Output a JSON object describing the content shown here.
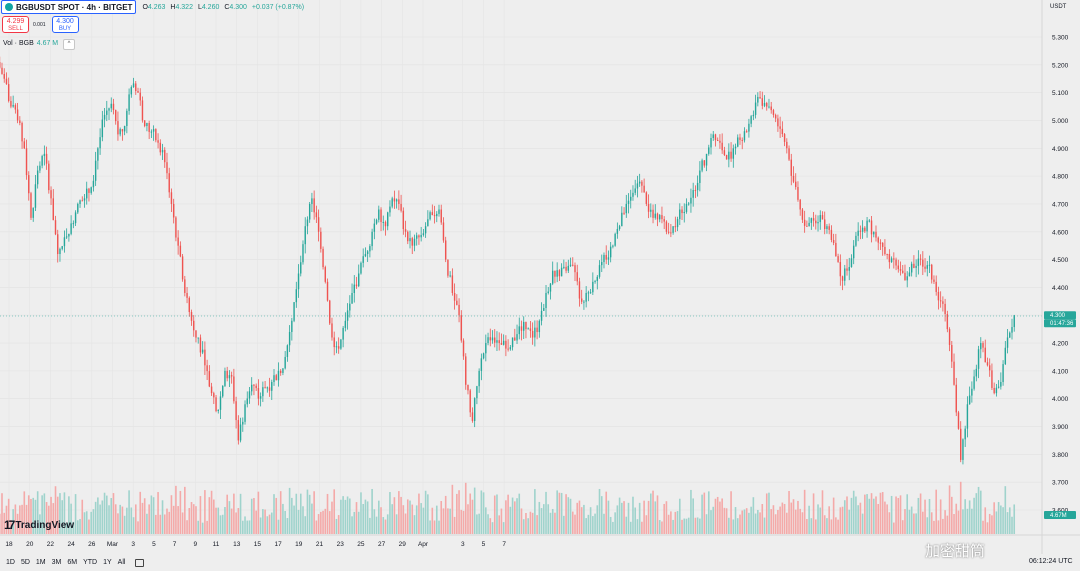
{
  "header": {
    "symbol": "BGBUSDT SPOT · 4h · BITGET",
    "ohlc": [
      {
        "label": "O",
        "value": "4.263"
      },
      {
        "label": "H",
        "value": "4.322"
      },
      {
        "label": "L",
        "value": "4.260"
      },
      {
        "label": "C",
        "value": "4.300"
      }
    ],
    "change": "+0.037 (+0.87%)"
  },
  "trade": {
    "sell_price": "4.299",
    "sell_label": "SELL",
    "spread": "0.001",
    "buy_price": "4.300",
    "buy_label": "BUY"
  },
  "volume_indicator": {
    "label": "Vol · BGB",
    "value": "4.67 M"
  },
  "price_axis": {
    "currency": "USDT",
    "last_price": "4.300",
    "countdown": "01:47:36",
    "last_volume": "4.67M"
  },
  "bottom_toolbar": {
    "ranges": [
      "1D",
      "5D",
      "1M",
      "3M",
      "6M",
      "YTD",
      "1Y",
      "All"
    ],
    "clock": "06:12:24 UTC"
  },
  "watermark": "加密甜筒",
  "brand": "TradingView",
  "colors": {
    "up": "#26a69a",
    "down": "#ef5350",
    "up_vol": "#9fd3cc",
    "down_vol": "#f4a9a8",
    "accent": "#2962ff"
  },
  "chart_data": {
    "type": "candlestick",
    "y_ticks": [
      "5.300",
      "5.200",
      "5.100",
      "5.000",
      "4.900",
      "4.800",
      "4.700",
      "4.600",
      "4.500",
      "4.400",
      "4.300",
      "4.200",
      "4.100",
      "4.000",
      "3.900",
      "3.800",
      "3.700",
      "3.600"
    ],
    "ylim": [
      3.55,
      5.35
    ],
    "x_ticks": [
      "18",
      "20",
      "22",
      "24",
      "26",
      "Mar",
      "3",
      "5",
      "7",
      "9",
      "11",
      "13",
      "15",
      "17",
      "19",
      "21",
      "23",
      "25",
      "27",
      "29",
      "Apr",
      "3",
      "5",
      "7"
    ],
    "close_series": [
      5.15,
      5.05,
      5.0,
      4.9,
      4.65,
      4.82,
      4.88,
      4.72,
      4.52,
      4.58,
      4.63,
      4.7,
      4.72,
      4.76,
      4.9,
      5.02,
      5.06,
      4.95,
      4.98,
      5.12,
      5.1,
      4.98,
      4.96,
      4.92,
      4.85,
      4.7,
      4.55,
      4.38,
      4.28,
      4.22,
      4.12,
      4.02,
      3.96,
      4.1,
      4.08,
      3.85,
      3.98,
      4.05,
      4.0,
      4.04,
      4.06,
      4.1,
      4.15,
      4.28,
      4.45,
      4.62,
      4.72,
      4.6,
      4.42,
      4.22,
      4.18,
      4.28,
      4.38,
      4.45,
      4.52,
      4.6,
      4.68,
      4.62,
      4.72,
      4.7,
      4.6,
      4.55,
      4.58,
      4.62,
      4.66,
      4.68,
      4.5,
      4.38,
      4.3,
      4.05,
      3.92,
      4.1,
      4.2,
      4.22,
      4.2,
      4.18,
      4.22,
      4.26,
      4.25,
      4.22,
      4.28,
      4.38,
      4.46,
      4.44,
      4.46,
      4.48,
      4.36,
      4.38,
      4.42,
      4.48,
      4.5,
      4.55,
      4.62,
      4.7,
      4.74,
      4.78,
      4.7,
      4.65,
      4.66,
      4.6,
      4.62,
      4.68,
      4.7,
      4.75,
      4.82,
      4.88,
      4.95,
      4.92,
      4.86,
      4.9,
      4.93,
      4.96,
      5.02,
      5.08,
      5.05,
      5.02,
      4.97,
      4.9,
      4.78,
      4.68,
      4.62,
      4.64,
      4.66,
      4.62,
      4.56,
      4.44,
      4.46,
      4.55,
      4.6,
      4.64,
      4.6,
      4.56,
      4.52,
      4.5,
      4.46,
      4.44,
      4.47,
      4.5,
      4.48,
      4.42,
      4.35,
      4.25,
      4.05,
      3.78,
      3.98,
      4.08,
      4.2,
      4.12,
      4.02,
      4.06,
      4.22,
      4.3
    ],
    "volume_note": "Volume histogram per candle (relative heights)",
    "last_price_line": 4.3
  }
}
